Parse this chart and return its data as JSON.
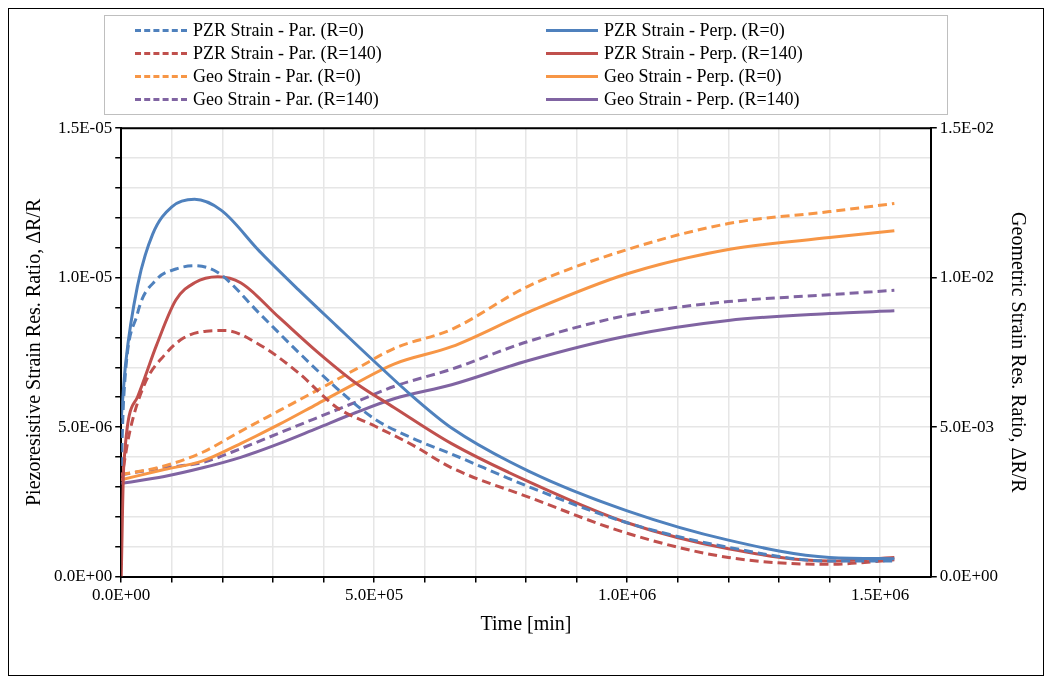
{
  "chart_data": {
    "type": "line",
    "xlabel": "Time [min]",
    "ylabel": "Piezoresistive Strain Res. Ratio, ΔR/R",
    "y2label": "Geometric Strain Res. Ratio, ΔR/R",
    "legend": "top",
    "grid": true,
    "xlim": [
      0,
      1600000
    ],
    "xticks": [
      {
        "value": 0,
        "label": "0.0E+00"
      },
      {
        "value": 100000,
        "label": null
      },
      {
        "value": 200000,
        "label": null
      },
      {
        "value": 300000,
        "label": null
      },
      {
        "value": 400000,
        "label": null
      },
      {
        "value": 500000,
        "label": "5.0E+05"
      },
      {
        "value": 600000,
        "label": null
      },
      {
        "value": 700000,
        "label": null
      },
      {
        "value": 800000,
        "label": null
      },
      {
        "value": 900000,
        "label": null
      },
      {
        "value": 1000000,
        "label": "1.0E+06"
      },
      {
        "value": 1100000,
        "label": null
      },
      {
        "value": 1200000,
        "label": null
      },
      {
        "value": 1300000,
        "label": null
      },
      {
        "value": 1400000,
        "label": null
      },
      {
        "value": 1500000,
        "label": "1.5E+06"
      }
    ],
    "ylim": [
      0,
      1.5e-05
    ],
    "yticks": [
      {
        "value": 0,
        "label": "0.0E+00"
      },
      {
        "value": 1e-06,
        "label": null
      },
      {
        "value": 2e-06,
        "label": null
      },
      {
        "value": 3e-06,
        "label": null
      },
      {
        "value": 4e-06,
        "label": null
      },
      {
        "value": 5e-06,
        "label": "5.0E-06"
      },
      {
        "value": 6e-06,
        "label": null
      },
      {
        "value": 7e-06,
        "label": null
      },
      {
        "value": 8e-06,
        "label": null
      },
      {
        "value": 9e-06,
        "label": null
      },
      {
        "value": 1e-05,
        "label": "1.0E-05"
      },
      {
        "value": 1.1e-05,
        "label": null
      },
      {
        "value": 1.2e-05,
        "label": null
      },
      {
        "value": 1.3e-05,
        "label": null
      },
      {
        "value": 1.4e-05,
        "label": null
      },
      {
        "value": 1.5e-05,
        "label": "1.5E-05"
      }
    ],
    "y2lim": [
      0,
      0.015
    ],
    "y2ticks": [
      {
        "value": 0,
        "label": "0.0E+00"
      },
      {
        "value": 0.005,
        "label": "5.0E-03"
      },
      {
        "value": 0.01,
        "label": "1.0E-02"
      },
      {
        "value": 0.015,
        "label": "1.5E-02"
      }
    ],
    "series": [
      {
        "name": "PZR Strain - Par. (R=0)",
        "color": "#4f81bd",
        "line_style": "dashed",
        "x": [
          0,
          5000,
          32000,
          70000,
          108000,
          145000,
          191000,
          274000,
          350000,
          426000,
          502000,
          577000,
          653000,
          805000,
          1000000,
          1200000,
          1400000,
          1528000
        ],
        "values": [
          3.7e-06,
          6e-06,
          8.79e-06,
          9.94e-06,
          1.029e-05,
          1.04e-05,
          1.017e-05,
          8.79e-06,
          7.51e-06,
          6.3e-06,
          5.26e-06,
          4.62e-06,
          4.1e-06,
          3.01e-06,
          1.8e-06,
          9.8e-07,
          5.2e-07,
          5.2e-07
        ]
      },
      {
        "name": "PZR Strain - Perp. (R=0)",
        "color": "#4f81bd",
        "line_style": "solid",
        "x": [
          0,
          9000,
          32000,
          62000,
          100000,
          145000,
          198000,
          274000,
          350000,
          426000,
          502000,
          577000,
          653000,
          805000,
          1000000,
          1200000,
          1400000,
          1528000
        ],
        "values": [
          5.3e-06,
          7.17e-06,
          9.71e-06,
          1.145e-05,
          1.237e-05,
          1.262e-05,
          1.225e-05,
          1.087e-05,
          9.6e-06,
          8.38e-06,
          7.17e-06,
          6.01e-06,
          4.97e-06,
          3.53e-06,
          2.2e-06,
          1.22e-06,
          6.4e-07,
          6e-07
        ]
      },
      {
        "name": "PZR Strain - Par. (R=140)",
        "color": "#c0504d",
        "line_style": "dashed",
        "x": [
          0,
          17000,
          47000,
          85000,
          123000,
          168000,
          206000,
          274000,
          350000,
          426000,
          502000,
          577000,
          653000,
          805000,
          1000000,
          1200000,
          1400000,
          1528000
        ],
        "values": [
          3.2e-06,
          4.86e-06,
          6.47e-06,
          7.4e-06,
          7.98e-06,
          8.21e-06,
          8.23e-06,
          7.75e-06,
          6.82e-06,
          5.66e-06,
          5.03e-06,
          4.39e-06,
          3.64e-06,
          2.66e-06,
          1.45e-06,
          6.4e-07,
          4.1e-07,
          5.6e-07
        ]
      },
      {
        "name": "PZR Strain - Perp. (R=140)",
        "color": "#c0504d",
        "line_style": "solid",
        "x": [
          0,
          5000,
          32000,
          70000,
          108000,
          145000,
          191000,
          236000,
          312000,
          388000,
          464000,
          539000,
          653000,
          805000,
          1000000,
          1200000,
          1400000,
          1528000
        ],
        "values": [
          0,
          3.7e-06,
          6e-06,
          7.75e-06,
          9.25e-06,
          9.83e-06,
          1.003e-05,
          9.83e-06,
          8.67e-06,
          7.51e-06,
          6.47e-06,
          5.66e-06,
          4.45e-06,
          3.18e-06,
          1.8e-06,
          9.3e-07,
          5.2e-07,
          6.4e-07
        ]
      },
      {
        "name": "Geo Strain - Par. (R=0)",
        "color": "#f79646",
        "line_style": "dashed",
        "axis": "y2",
        "x": [
          0,
          85000,
          161000,
          236000,
          312000,
          388000,
          464000,
          539000,
          653000,
          805000,
          1000000,
          1200000,
          1400000,
          1528000
        ],
        "values": [
          0.00341,
          0.0037,
          0.00416,
          0.00486,
          0.00555,
          0.00624,
          0.00694,
          0.00763,
          0.00827,
          0.00972,
          0.01094,
          0.01181,
          0.01221,
          0.01248
        ]
      },
      {
        "name": "Geo Strain - Perp. (R=0)",
        "color": "#f79646",
        "line_style": "solid",
        "axis": "y2",
        "x": [
          0,
          85000,
          161000,
          236000,
          312000,
          388000,
          464000,
          539000,
          653000,
          805000,
          1000000,
          1200000,
          1400000,
          1528000
        ],
        "values": [
          0.00324,
          0.00358,
          0.00387,
          0.00445,
          0.00509,
          0.00578,
          0.00647,
          0.00711,
          0.00769,
          0.00885,
          0.01013,
          0.01094,
          0.01134,
          0.01157
        ]
      },
      {
        "name": "Geo Strain - Par. (R=140)",
        "color": "#8064a2",
        "line_style": "dashed",
        "axis": "y2",
        "x": [
          0,
          85000,
          161000,
          236000,
          312000,
          388000,
          464000,
          539000,
          653000,
          805000,
          1000000,
          1200000,
          1400000,
          1528000
        ],
        "values": [
          0.00341,
          0.00364,
          0.00382,
          0.00428,
          0.0048,
          0.00532,
          0.00584,
          0.00636,
          0.00694,
          0.00787,
          0.00874,
          0.0092,
          0.00943,
          0.00958
        ]
      },
      {
        "name": "Geo Strain - Perp. (R=140)",
        "color": "#8064a2",
        "line_style": "solid",
        "axis": "y2",
        "x": [
          0,
          85000,
          161000,
          236000,
          312000,
          388000,
          464000,
          539000,
          653000,
          805000,
          1000000,
          1200000,
          1400000,
          1528000
        ],
        "values": [
          0.00312,
          0.00335,
          0.00364,
          0.00399,
          0.00445,
          0.00497,
          0.00549,
          0.00595,
          0.00642,
          0.00723,
          0.00805,
          0.00857,
          0.0088,
          0.00889
        ]
      }
    ]
  }
}
